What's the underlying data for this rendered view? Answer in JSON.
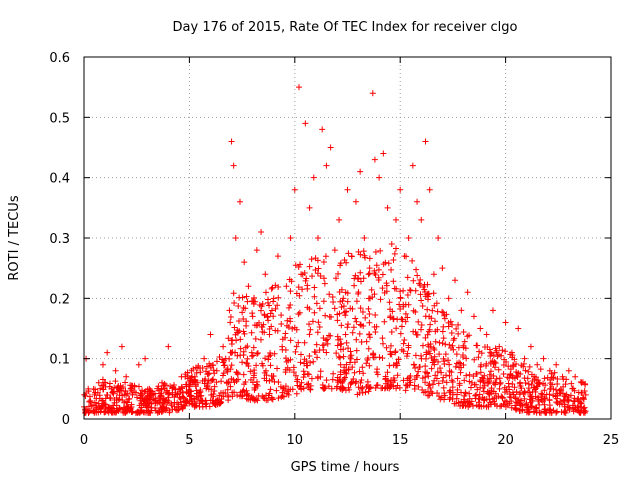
{
  "chart_data": {
    "type": "scatter",
    "title": "Day 176 of 2015, Rate Of TEC Index for receiver clgo",
    "xlabel": "GPS time / hours",
    "ylabel": "ROTI / TECUs",
    "xlim": [
      0,
      25
    ],
    "ylim": [
      0,
      0.6
    ],
    "xticks": [
      0,
      5,
      10,
      15,
      20,
      25
    ],
    "xtick_labels": [
      "0",
      "5",
      "10",
      "15",
      "20",
      "25"
    ],
    "yticks": [
      0,
      0.1,
      0.2,
      0.3,
      0.4,
      0.5,
      0.6
    ],
    "ytick_labels": [
      "0",
      "0.1",
      "0.2",
      "0.3",
      "0.4",
      "0.5",
      "0.6"
    ],
    "grid": true,
    "marker": "+",
    "series": [
      {
        "name": "ROTI",
        "color": "#ff0000",
        "x": [
          0.0,
          0.1,
          0.2,
          0.3,
          0.5,
          0.7,
          0.9,
          1.1,
          1.3,
          1.5,
          1.8,
          2.0,
          2.3,
          2.6,
          2.9,
          3.1,
          3.4,
          3.7,
          4.0,
          4.2,
          4.5,
          4.8,
          5.1,
          5.4,
          5.7,
          6.0,
          6.3,
          6.6,
          6.9,
          7.0,
          7.1,
          7.2,
          7.4,
          7.6,
          7.8,
          8.0,
          8.2,
          8.4,
          8.6,
          8.8,
          9.0,
          9.2,
          9.4,
          9.6,
          9.8,
          10.0,
          10.2,
          10.3,
          10.5,
          10.7,
          10.9,
          11.1,
          11.3,
          11.5,
          11.7,
          11.9,
          12.1,
          12.3,
          12.5,
          12.7,
          12.9,
          13.1,
          13.3,
          13.5,
          13.7,
          13.8,
          14.0,
          14.2,
          14.4,
          14.6,
          14.8,
          15.0,
          15.2,
          15.4,
          15.6,
          15.8,
          16.0,
          16.2,
          16.4,
          16.6,
          16.8,
          17.0,
          17.3,
          17.6,
          17.9,
          18.2,
          18.5,
          18.8,
          19.1,
          19.4,
          19.7,
          20.0,
          20.3,
          20.6,
          20.9,
          21.2,
          21.5,
          21.8,
          22.1,
          22.4,
          22.7,
          23.0,
          23.3,
          23.6,
          23.8
        ],
        "y": [
          0.02,
          0.1,
          0.05,
          0.03,
          0.04,
          0.06,
          0.09,
          0.11,
          0.05,
          0.08,
          0.12,
          0.07,
          0.04,
          0.09,
          0.1,
          0.05,
          0.03,
          0.06,
          0.12,
          0.04,
          0.05,
          0.07,
          0.08,
          0.06,
          0.1,
          0.14,
          0.08,
          0.12,
          0.18,
          0.46,
          0.42,
          0.3,
          0.36,
          0.26,
          0.22,
          0.17,
          0.28,
          0.31,
          0.24,
          0.14,
          0.2,
          0.27,
          0.12,
          0.22,
          0.3,
          0.38,
          0.55,
          0.24,
          0.49,
          0.35,
          0.4,
          0.3,
          0.48,
          0.42,
          0.45,
          0.28,
          0.33,
          0.2,
          0.38,
          0.27,
          0.36,
          0.41,
          0.3,
          0.24,
          0.54,
          0.43,
          0.4,
          0.44,
          0.35,
          0.29,
          0.33,
          0.38,
          0.27,
          0.3,
          0.42,
          0.36,
          0.33,
          0.46,
          0.38,
          0.24,
          0.3,
          0.25,
          0.2,
          0.23,
          0.18,
          0.21,
          0.17,
          0.15,
          0.14,
          0.18,
          0.12,
          0.16,
          0.11,
          0.15,
          0.1,
          0.12,
          0.09,
          0.1,
          0.08,
          0.09,
          0.07,
          0.08,
          0.07,
          0.06,
          0.04
        ]
      }
    ],
    "baseline_band": {
      "description": "dense cloud of points between the lower envelope and upper envelope",
      "x": [
        0,
        0.5,
        1,
        2,
        3,
        4,
        5,
        6,
        6.8,
        7.2,
        8,
        9,
        10,
        11,
        12,
        13,
        14,
        15,
        16,
        17,
        18,
        19,
        20,
        21,
        22,
        23,
        23.8
      ],
      "lower": [
        0.01,
        0.01,
        0.01,
        0.01,
        0.01,
        0.01,
        0.02,
        0.02,
        0.03,
        0.04,
        0.03,
        0.03,
        0.04,
        0.05,
        0.05,
        0.04,
        0.05,
        0.05,
        0.04,
        0.03,
        0.02,
        0.02,
        0.02,
        0.01,
        0.01,
        0.01,
        0.01
      ],
      "upper": [
        0.06,
        0.05,
        0.07,
        0.06,
        0.05,
        0.06,
        0.08,
        0.1,
        0.12,
        0.24,
        0.2,
        0.22,
        0.26,
        0.28,
        0.27,
        0.28,
        0.3,
        0.28,
        0.25,
        0.18,
        0.15,
        0.12,
        0.12,
        0.09,
        0.08,
        0.07,
        0.06
      ]
    }
  }
}
